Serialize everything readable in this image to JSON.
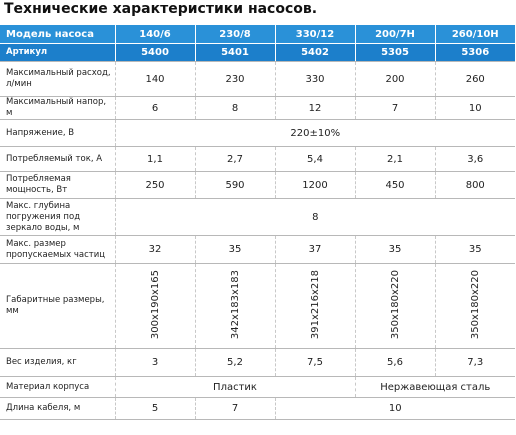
{
  "header": {
    "title": "Технические характеристики насосов."
  },
  "table": {
    "header": [
      "Модель насоса",
      "140/6",
      "230/8",
      "330/12",
      "200/7Н",
      "260/10Н"
    ],
    "rows": [
      [
        "Артикул",
        "5400",
        "5401",
        "5402",
        "5305",
        "5306"
      ],
      [
        "Максимальный расход, л/мин",
        "140",
        "230",
        "330",
        "200",
        "260"
      ],
      [
        "Максимальный напор, м",
        "6",
        "8",
        "12",
        "7",
        "10"
      ],
      [
        "Напряжение, В",
        "220±10%"
      ],
      [
        "Потребляемый ток, А",
        "1,1",
        "2,7",
        "5,4",
        "2,1",
        "3,6"
      ],
      [
        "Потребляемая мощность, Вт",
        "250",
        "590",
        "1200",
        "450",
        "800"
      ],
      [
        "Макс. глубина погружения под зеркало воды, м",
        "8"
      ],
      [
        "Макс. размер пропускаемых частиц",
        "32",
        "35",
        "37",
        "35",
        "35"
      ],
      [
        "Габаритные размеры, мм",
        "300x190x165",
        "342x183x183",
        "391x216x218",
        "350x180x220",
        "350x180x220"
      ],
      [
        "Вес изделия, кг",
        "3",
        "5,2",
        "7,5",
        "5,6",
        "7,3"
      ],
      [
        "Материал корпуса",
        "Пластик",
        "Нержавеющая сталь"
      ],
      [
        "Длина кабеля, м",
        "5",
        "7",
        "10"
      ]
    ]
  }
}
